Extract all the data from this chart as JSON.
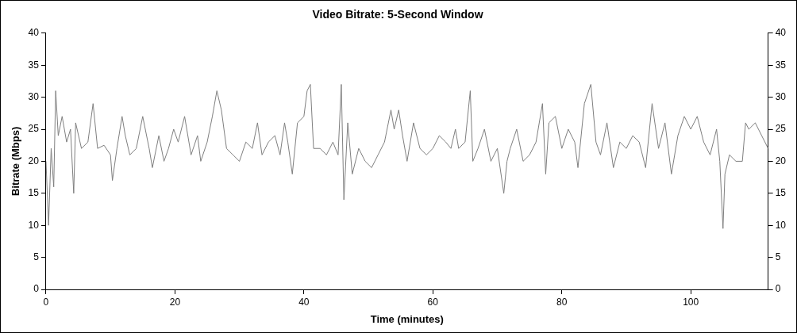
{
  "chart_data": {
    "type": "line",
    "title": "Video Bitrate: 5-Second Window",
    "xlabel": "Time (minutes)",
    "ylabel": "Bitrate (Mbps)",
    "xlim": [
      0,
      112
    ],
    "xticks": [
      0,
      20,
      40,
      60,
      80,
      100
    ],
    "ylim": [
      0,
      40
    ],
    "yticks": [
      0,
      5,
      10,
      15,
      20,
      25,
      30,
      35,
      40
    ],
    "y2lim": [
      0,
      40
    ],
    "y2ticks": [
      0,
      5,
      10,
      15,
      20,
      25,
      30,
      35,
      40
    ],
    "grid": false,
    "legend": false,
    "marker": "none",
    "line_style": "solid",
    "series": [
      {
        "color": "#7f7f7f",
        "x": [
          0,
          0.4,
          0.8,
          1.2,
          1.5,
          1.9,
          2.5,
          3.2,
          3.8,
          4.3,
          4.6,
          5.5,
          6.5,
          7.3,
          8,
          9,
          10,
          10.3,
          11,
          11.8,
          12.3,
          13,
          14,
          15,
          16,
          16.5,
          17.5,
          18.3,
          19,
          19.8,
          20.5,
          21.5,
          22.5,
          23.5,
          24,
          25,
          25.8,
          26.5,
          27.2,
          28,
          29,
          30,
          31,
          32,
          32.8,
          33.5,
          34.5,
          35.5,
          36.3,
          37,
          37.5,
          38.2,
          39,
          40,
          40.5,
          41,
          41.5,
          42.5,
          43.5,
          44.5,
          45.3,
          45.8,
          46.2,
          46.8,
          47.5,
          48.5,
          49.5,
          50.5,
          51.5,
          52.5,
          53.5,
          54,
          54.7,
          55.3,
          56,
          57,
          58,
          59,
          60,
          61,
          62,
          62.8,
          63.5,
          64,
          65,
          65.8,
          66.2,
          67,
          68,
          69,
          70,
          71,
          71.5,
          72,
          73,
          74,
          75,
          76,
          77,
          77.5,
          78,
          79,
          80,
          81,
          82,
          82.5,
          83.5,
          84.5,
          85.3,
          86,
          87,
          88,
          89,
          90,
          91,
          92,
          93,
          94,
          95,
          96,
          97,
          98,
          99,
          100,
          101,
          102,
          103,
          104,
          104.5,
          105,
          105.3,
          106,
          107,
          108,
          108.5,
          109,
          110,
          111,
          112
        ],
        "values": [
          20,
          10,
          22,
          16,
          31,
          24,
          27,
          23,
          25,
          15,
          26,
          22,
          23,
          29,
          22,
          22.5,
          21,
          17,
          22,
          27,
          24,
          21,
          22,
          27,
          22,
          19,
          24,
          20,
          22,
          25,
          23,
          27,
          21,
          24,
          20,
          23,
          27,
          31,
          28,
          22,
          21,
          20,
          23,
          22,
          26,
          21,
          23,
          24,
          21,
          26,
          23,
          18,
          26,
          27,
          31,
          32,
          22,
          22,
          21,
          23,
          21,
          32,
          14,
          26,
          18,
          22,
          20,
          19,
          21,
          23,
          28,
          25,
          28,
          24,
          20,
          26,
          22,
          21,
          22,
          24,
          23,
          22,
          25,
          22,
          23,
          31,
          20,
          22,
          25,
          20,
          22,
          15,
          20,
          22,
          25,
          20,
          21,
          23,
          29,
          18,
          26,
          27,
          22,
          25,
          23,
          19,
          29,
          32,
          23,
          21,
          26,
          19,
          23,
          22,
          24,
          23,
          19,
          29,
          22,
          26,
          18,
          24,
          27,
          25,
          27,
          23,
          21,
          25,
          20,
          9.5,
          18,
          21,
          20,
          20,
          26,
          25,
          26,
          24,
          22
        ]
      }
    ]
  }
}
